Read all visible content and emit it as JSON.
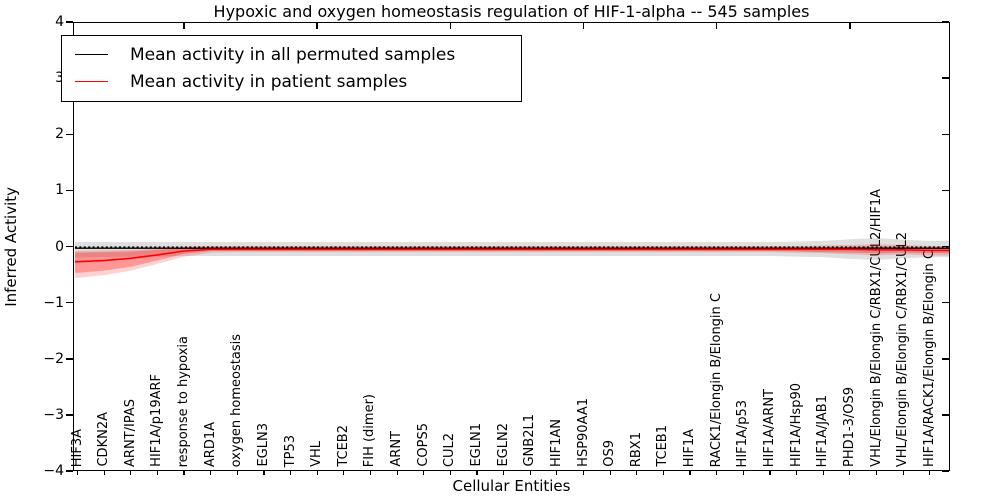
{
  "title": "Hypoxic and oxygen homeostasis regulation of HIF-1-alpha -- 545 samples",
  "axes": {
    "xlabel": "Cellular Entities",
    "ylabel": "Inferred Activity",
    "ytick_labels": [
      "4",
      "3",
      "2",
      "1",
      "0",
      "−1",
      "−2",
      "−3",
      "−4"
    ]
  },
  "chart_data": {
    "type": "line",
    "title": "Hypoxic and oxygen homeostasis regulation of HIF-1-alpha -- 545 samples",
    "xlabel": "Cellular Entities",
    "ylabel": "Inferred Activity",
    "ylim": [
      -4,
      4
    ],
    "grid": false,
    "legend_position": "upper-left",
    "xtick_major_indices": [
      4,
      9,
      14,
      19,
      24,
      29
    ],
    "categories": [
      "HIF3A",
      "CDKN2A",
      "ARNT/IPAS",
      "HIF1A/p19ARF",
      "response to hypoxia",
      "ARD1A",
      "oxygen homeostasis",
      "EGLN3",
      "TP53",
      "VHL",
      "TCEB2",
      "FIH (dimer)",
      "ARNT",
      "COPS5",
      "CUL2",
      "EGLN1",
      "EGLN2",
      "GNB2L1",
      "HIF1AN",
      "HSP90AA1",
      "OS9",
      "RBX1",
      "TCEB1",
      "HIF1A",
      "RACK1/Elongin B/Elongin C",
      "HIF1A/p53",
      "HIF1A/ARNT",
      "HIF1A/Hsp90",
      "HIF1A/JAB1",
      "PHD1-3/OS9",
      "VHL/Elongin B/Elongin C/RBX1/CUL2/HIF1A",
      "VHL/Elongin B/Elongin C/RBX1/CUL2",
      "HIF1A/RACK1/Elongin B/Elongin C"
    ],
    "series": [
      {
        "name": "Mean activity in all permuted samples",
        "color": "#000000",
        "line_width": 1.3,
        "values": [
          -0.03,
          -0.03,
          -0.03,
          -0.03,
          -0.03,
          -0.03,
          -0.03,
          -0.03,
          -0.03,
          -0.03,
          -0.03,
          -0.03,
          -0.03,
          -0.03,
          -0.03,
          -0.03,
          -0.03,
          -0.03,
          -0.03,
          -0.03,
          -0.03,
          -0.03,
          -0.03,
          -0.03,
          -0.03,
          -0.03,
          -0.03,
          -0.03,
          -0.03,
          -0.03,
          -0.03,
          -0.03,
          -0.03
        ]
      },
      {
        "name": "Mean activity in patient samples",
        "color": "#ff0000",
        "line_width": 1.6,
        "values": [
          -0.27,
          -0.25,
          -0.21,
          -0.15,
          -0.08,
          -0.05,
          -0.05,
          -0.05,
          -0.05,
          -0.05,
          -0.05,
          -0.05,
          -0.05,
          -0.05,
          -0.05,
          -0.05,
          -0.05,
          -0.05,
          -0.05,
          -0.05,
          -0.05,
          -0.05,
          -0.05,
          -0.05,
          -0.05,
          -0.05,
          -0.05,
          -0.05,
          -0.05,
          -0.05,
          -0.06,
          -0.06,
          -0.07
        ]
      }
    ],
    "bands": [
      {
        "name": "permuted-samples-band",
        "color": "rgba(80,80,80,0.18)",
        "upper": [
          0.08,
          0.08,
          0.08,
          0.08,
          0.08,
          0.08,
          0.08,
          0.08,
          0.08,
          0.08,
          0.08,
          0.08,
          0.08,
          0.08,
          0.08,
          0.08,
          0.08,
          0.08,
          0.08,
          0.08,
          0.08,
          0.08,
          0.08,
          0.08,
          0.08,
          0.08,
          0.08,
          0.09,
          0.1,
          0.13,
          0.15,
          0.12,
          0.1
        ],
        "lower": [
          -0.2,
          -0.19,
          -0.18,
          -0.18,
          -0.17,
          -0.17,
          -0.17,
          -0.17,
          -0.17,
          -0.17,
          -0.17,
          -0.17,
          -0.17,
          -0.17,
          -0.17,
          -0.17,
          -0.17,
          -0.17,
          -0.17,
          -0.17,
          -0.17,
          -0.17,
          -0.17,
          -0.17,
          -0.17,
          -0.17,
          -0.17,
          -0.18,
          -0.19,
          -0.22,
          -0.24,
          -0.21,
          -0.19
        ]
      },
      {
        "name": "patient-samples-band-outer",
        "color": "rgba(255,0,0,0.18)",
        "upper": [
          -0.08,
          -0.07,
          -0.06,
          -0.04,
          -0.01,
          0.01,
          0.01,
          0.01,
          0.01,
          0.01,
          0.01,
          0.01,
          0.01,
          0.01,
          0.01,
          0.01,
          0.01,
          0.01,
          0.01,
          0.01,
          0.01,
          0.01,
          0.01,
          0.01,
          0.01,
          0.01,
          0.01,
          0.01,
          0.02,
          0.03,
          0.04,
          0.03,
          0.01
        ],
        "lower": [
          -0.56,
          -0.51,
          -0.43,
          -0.31,
          -0.18,
          -0.11,
          -0.1,
          -0.1,
          -0.1,
          -0.1,
          -0.1,
          -0.1,
          -0.1,
          -0.1,
          -0.1,
          -0.1,
          -0.1,
          -0.1,
          -0.1,
          -0.1,
          -0.1,
          -0.1,
          -0.1,
          -0.1,
          -0.1,
          -0.1,
          -0.1,
          -0.11,
          -0.12,
          -0.14,
          -0.16,
          -0.14,
          -0.16
        ]
      },
      {
        "name": "patient-samples-band-inner",
        "color": "rgba(255,0,0,0.28)",
        "upper": [
          -0.11,
          -0.1,
          -0.09,
          -0.06,
          -0.03,
          -0.02,
          -0.02,
          -0.02,
          -0.02,
          -0.02,
          -0.02,
          -0.02,
          -0.02,
          -0.02,
          -0.02,
          -0.02,
          -0.02,
          -0.02,
          -0.02,
          -0.02,
          -0.02,
          -0.02,
          -0.02,
          -0.02,
          -0.02,
          -0.02,
          -0.02,
          -0.02,
          -0.02,
          -0.01,
          0.0,
          -0.01,
          -0.03
        ],
        "lower": [
          -0.47,
          -0.43,
          -0.36,
          -0.25,
          -0.13,
          -0.08,
          -0.08,
          -0.08,
          -0.08,
          -0.08,
          -0.08,
          -0.08,
          -0.08,
          -0.08,
          -0.08,
          -0.08,
          -0.08,
          -0.08,
          -0.08,
          -0.08,
          -0.08,
          -0.08,
          -0.08,
          -0.08,
          -0.08,
          -0.08,
          -0.08,
          -0.09,
          -0.1,
          -0.11,
          -0.12,
          -0.11,
          -0.12
        ]
      }
    ],
    "dotted_reference_line": {
      "value": -0.01,
      "color": "#000000",
      "style": "dotted"
    }
  }
}
